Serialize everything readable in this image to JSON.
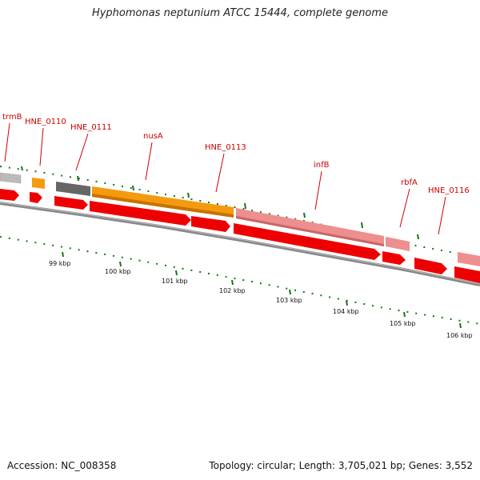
{
  "title": "Hyphomonas neptunium ATCC 15444, complete genome",
  "accession": "Accession: NC_008358",
  "summary": "Topology: circular; Length: 3,705,021 bp; Genes: 3,552",
  "colors": {
    "gene_label": "#cc0000",
    "cds_arrow": "#ee0000",
    "backbone": "#888888",
    "major_tick": "#117711",
    "orange_feature": "#f59a0f",
    "pink_feature": "#ee8e8e",
    "gray_feature": "#666666",
    "light_gray_feature": "#bbbbbb"
  },
  "gene_labels": [
    {
      "id": "trmB",
      "text": "trmB"
    },
    {
      "id": "hne-0110",
      "text": "HNE_0110"
    },
    {
      "id": "hne-0111",
      "text": "HNE_0111"
    },
    {
      "id": "nusa",
      "text": "nusA"
    },
    {
      "id": "hne-0113",
      "text": "HNE_0113"
    },
    {
      "id": "infb",
      "text": "infB"
    },
    {
      "id": "rbfa",
      "text": "rbfA"
    },
    {
      "id": "hne-0116",
      "text": "HNE_0116"
    }
  ],
  "kbp_labels": [
    "99 kbp",
    "100 kbp",
    "101 kbp",
    "102 kbp",
    "103 kbp",
    "104 kbp",
    "105 kbp",
    "106 kbp"
  ]
}
